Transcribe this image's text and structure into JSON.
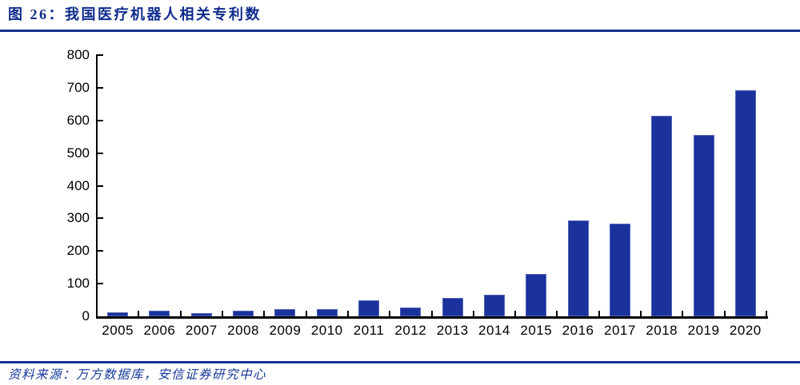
{
  "header": {
    "title": "图 26：我国医疗机器人相关专利数"
  },
  "footer": {
    "source": "资料来源：万方数据库，安信证券研究中心"
  },
  "colors": {
    "navy_accent": "#14338f",
    "title_text": "#0f2b8c",
    "bar_fill": "#1b319c",
    "axis": "#000000",
    "background": "#ffffff"
  },
  "chart_data": {
    "type": "bar",
    "title": "我国医疗机器人相关专利数",
    "xlabel": "",
    "ylabel": "",
    "categories": [
      "2005",
      "2006",
      "2007",
      "2008",
      "2009",
      "2010",
      "2011",
      "2012",
      "2013",
      "2014",
      "2015",
      "2016",
      "2017",
      "2018",
      "2019",
      "2020"
    ],
    "values": [
      13,
      18,
      9,
      17,
      21,
      21,
      48,
      26,
      56,
      65,
      130,
      293,
      283,
      615,
      555,
      692
    ],
    "ylim": [
      0,
      800
    ],
    "yticks": [
      0,
      100,
      200,
      300,
      400,
      500,
      600,
      700,
      800
    ],
    "grid": false,
    "legend_position": "none",
    "bar_color": "#1b319c"
  }
}
